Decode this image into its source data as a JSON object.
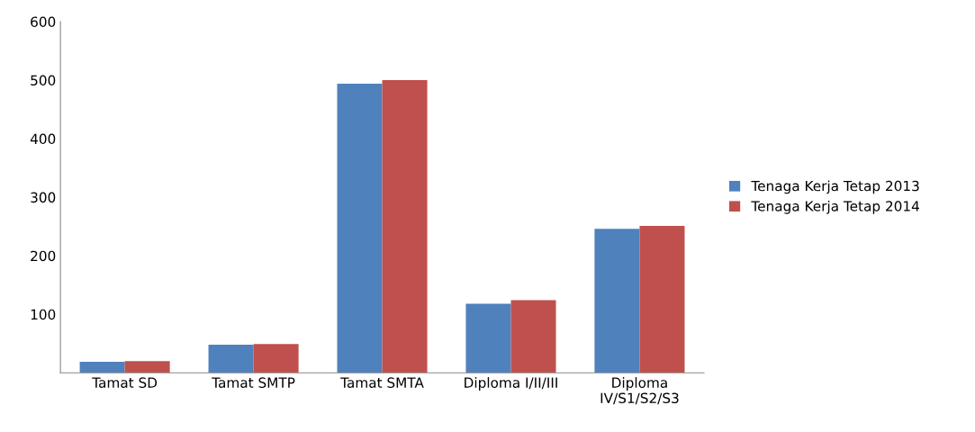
{
  "chart_data": {
    "type": "bar",
    "categories": [
      "Tamat SD",
      "Tamat SMTP",
      "Tamat SMTA",
      "Diploma I/II/III",
      "Diploma\nIV/S1/S2/S3"
    ],
    "series": [
      {
        "name": "Tenaga Kerja Tetap 2013",
        "color": "#4f81bd",
        "values": [
          19,
          48,
          494,
          118,
          246
        ]
      },
      {
        "name": "Tenaga Kerja Tetap 2014",
        "color": "#c0504d",
        "values": [
          20,
          49,
          500,
          124,
          251
        ]
      }
    ],
    "ylim": [
      0,
      600
    ],
    "yticks": [
      100,
      200,
      300,
      400,
      500,
      600
    ],
    "grid": false,
    "legend": "right"
  }
}
